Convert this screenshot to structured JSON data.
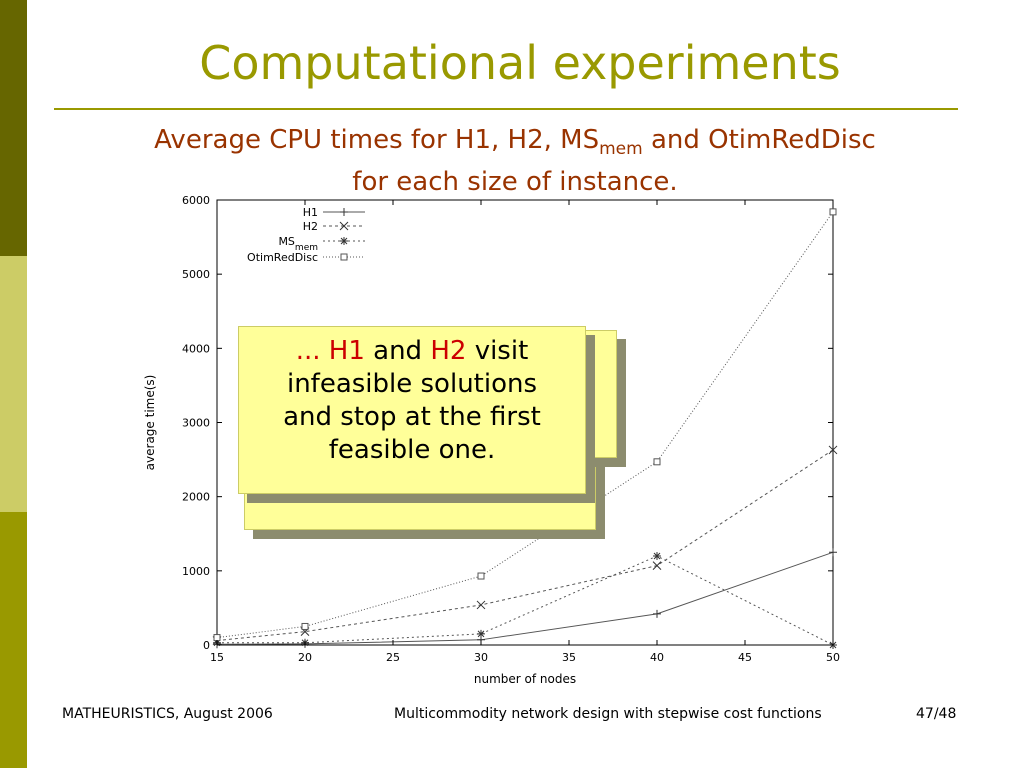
{
  "slide": {
    "title": "Computational experiments",
    "subtitle_line1_before": "Average CPU times for H1, H2, MS",
    "subtitle_sub": "mem",
    "subtitle_line1_after": " and OtimRedDisc",
    "subtitle_line2": "for each size of instance.",
    "callout_dots": "...",
    "callout_h1": "H1",
    "callout_and": "and",
    "callout_h2": "H2",
    "callout_visit": "visit",
    "callout_line2": "infeasible solutions",
    "callout_line3": "and stop at the first",
    "callout_line4": "feasible one."
  },
  "footer": {
    "left": "MATHEURISTICS, August 2006",
    "center": "Multicommodity network design with stepwise cost functions",
    "right": "47/48"
  },
  "colors": {
    "title": "#999900",
    "subtitle": "#993300",
    "callout_bg": "#ffff99",
    "callout_highlight": "#cc0000",
    "sidebar_dark": "#666600",
    "sidebar_light": "#cccc66",
    "sidebar_mid": "#999900"
  },
  "chart_data": {
    "type": "line",
    "xlabel": "number of nodes",
    "ylabel": "average time(s)",
    "xlim": [
      15,
      50
    ],
    "ylim": [
      0,
      6000
    ],
    "xticks": [
      15,
      20,
      25,
      30,
      35,
      40,
      45,
      50
    ],
    "yticks": [
      0,
      1000,
      2000,
      3000,
      4000,
      5000,
      6000
    ],
    "x": [
      15,
      20,
      30,
      40,
      50
    ],
    "legend_position": "top-left",
    "series": [
      {
        "name": "H1",
        "values": [
          10,
          15,
          70,
          420,
          1250
        ],
        "dash": "",
        "marker": "plus"
      },
      {
        "name": "H2",
        "values": [
          60,
          180,
          540,
          1070,
          2630
        ],
        "dash": "3,3",
        "marker": "x"
      },
      {
        "name": "MS",
        "name_sub": "mem",
        "values": [
          30,
          30,
          150,
          1200,
          0
        ],
        "dash": "2,3",
        "marker": "star"
      },
      {
        "name": "OtimRedDisc",
        "values": [
          100,
          250,
          930,
          2470,
          5840
        ],
        "dash": "1,2",
        "marker": "square"
      }
    ]
  }
}
